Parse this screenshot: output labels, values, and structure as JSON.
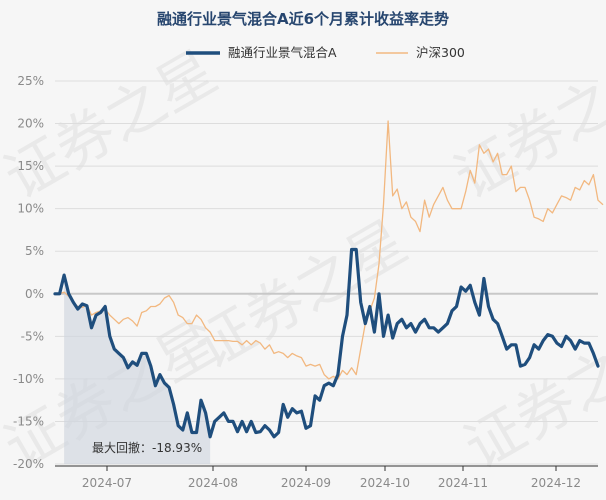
{
  "chart_data": {
    "type": "line",
    "title": "融通行业景气混合A近6个月累计收益率走势",
    "y_unit": "%",
    "ylim": [
      -20,
      25
    ],
    "yticks": [
      25,
      20,
      15,
      10,
      5,
      0,
      -5,
      -10,
      -15,
      -20
    ],
    "ytick_labels": [
      "25%",
      "20%",
      "15%",
      "10%",
      "5%",
      "0%",
      "-5%",
      "-10%",
      "-15%",
      "-20%"
    ],
    "xticks": [
      "2024-07",
      "2024-08",
      "2024-09",
      "2024-10",
      "2024-11",
      "2024-12"
    ],
    "grid": true,
    "legend_position": "top-center",
    "annotation": {
      "label": "最大回撤：",
      "value": "-18.93%"
    },
    "watermark": "证券之星",
    "colors": {
      "fund": "#1f4e7d",
      "index": "#f2b880",
      "drawdown": "#cfd6de",
      "grid": "#dddddd",
      "zero": "#c8c8c8"
    },
    "series": [
      {
        "name": "融通行业景气混合A",
        "values": [
          0.0,
          0.0,
          2.2,
          0.0,
          -1.0,
          -1.8,
          -1.2,
          -1.4,
          -4.0,
          -2.5,
          -2.2,
          -1.5,
          -5.0,
          -6.5,
          -7.0,
          -7.5,
          -8.7,
          -8.0,
          -8.4,
          -7.0,
          -7.0,
          -8.5,
          -10.8,
          -9.5,
          -10.5,
          -11.0,
          -13.0,
          -15.5,
          -16.0,
          -14.0,
          -16.3,
          -16.3,
          -12.5,
          -14.0,
          -16.8,
          -15.0,
          -14.5,
          -14.0,
          -15.0,
          -15.0,
          -16.2,
          -15.0,
          -16.2,
          -15.0,
          -16.3,
          -16.2,
          -15.5,
          -16.0,
          -16.8,
          -16.3,
          -13.0,
          -14.5,
          -13.5,
          -14.0,
          -13.8,
          -15.8,
          -15.5,
          -12.0,
          -12.5,
          -10.8,
          -10.5,
          -10.8,
          -9.5,
          -5.0,
          -2.5,
          5.2,
          5.2,
          -1.0,
          -3.5,
          -1.5,
          -4.5,
          0.0,
          -5.0,
          -2.5,
          -5.2,
          -3.5,
          -3.0,
          -4.0,
          -3.5,
          -4.5,
          -3.5,
          -3.0,
          -4.0,
          -4.0,
          -4.5,
          -4.0,
          -3.5,
          -2.0,
          -1.5,
          0.8,
          0.3,
          1.0,
          -1.0,
          -2.5,
          1.8,
          -1.5,
          -3.0,
          -3.5,
          -5.0,
          -6.5,
          -6.0,
          -6.0,
          -8.5,
          -8.3,
          -7.5,
          -6.0,
          -6.5,
          -5.5,
          -4.8,
          -5.0,
          -5.8,
          -6.2,
          -5.0,
          -5.5,
          -6.5,
          -5.5,
          -5.8,
          -5.8,
          -7.0,
          -8.5
        ]
      },
      {
        "name": "沪深300",
        "values": [
          0.0,
          0.0,
          0.2,
          -0.3,
          -1.0,
          -1.5,
          -1.6,
          -1.3,
          -2.5,
          -2.2,
          -2.0,
          -1.8,
          -2.5,
          -3.0,
          -3.5,
          -3.0,
          -2.8,
          -3.2,
          -3.8,
          -2.2,
          -2.0,
          -1.5,
          -1.5,
          -1.2,
          -0.5,
          -0.2,
          -1.0,
          -2.5,
          -2.8,
          -3.5,
          -3.5,
          -2.5,
          -3.0,
          -4.0,
          -4.5,
          -5.5,
          -5.5,
          -5.5,
          -5.5,
          -5.6,
          -5.6,
          -6.0,
          -5.5,
          -6.0,
          -5.5,
          -5.8,
          -6.5,
          -6.0,
          -7.0,
          -6.8,
          -7.0,
          -7.5,
          -7.0,
          -7.3,
          -7.5,
          -8.5,
          -8.3,
          -8.5,
          -8.3,
          -9.5,
          -10.0,
          -9.7,
          -10.0,
          -9.0,
          -9.5,
          -8.7,
          -9.5,
          -6.5,
          -3.5,
          -2.0,
          -0.5,
          3.5,
          10.5,
          20.3,
          11.5,
          12.3,
          10.0,
          10.8,
          9.0,
          8.5,
          7.3,
          11.0,
          9.0,
          10.5,
          11.5,
          12.5,
          11.0,
          10.0,
          10.0,
          10.0,
          12.0,
          14.5,
          13.0,
          17.5,
          16.5,
          17.0,
          15.5,
          16.5,
          14.0,
          14.0,
          15.0,
          12.0,
          12.5,
          12.5,
          11.0,
          9.0,
          8.8,
          8.5,
          10.0,
          9.5,
          10.5,
          11.5,
          11.3,
          11.0,
          12.5,
          12.2,
          13.3,
          12.8,
          14.0,
          11.0,
          10.5
        ]
      }
    ]
  }
}
